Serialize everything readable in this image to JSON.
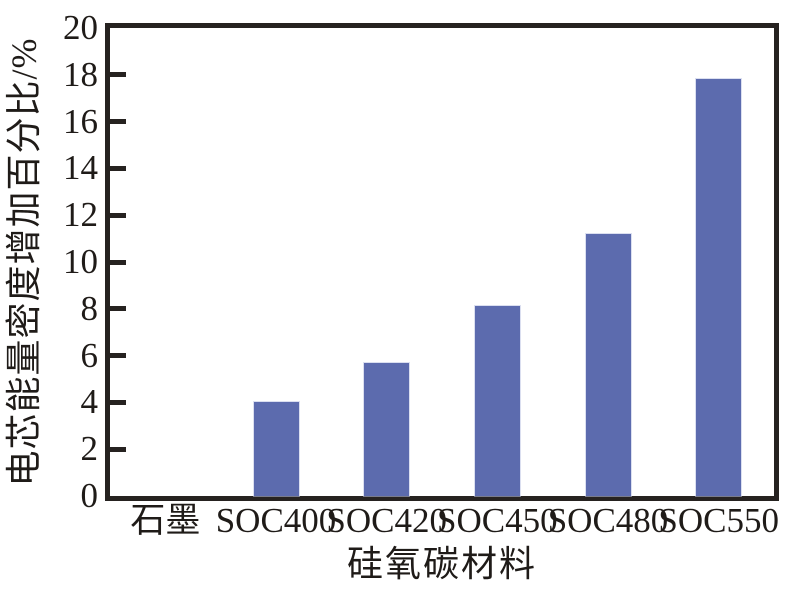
{
  "chart_data": {
    "type": "bar",
    "title": "",
    "categories": [
      "石墨",
      "SOC400",
      "SOC420",
      "SOC450",
      "SOC480",
      "SOC550"
    ],
    "values": [
      0,
      4.0,
      5.7,
      8.1,
      11.2,
      17.8
    ],
    "xlabel": "硅氧碳材料",
    "ylabel": "电芯能量密度增加百分比/%",
    "ylim": [
      0,
      20
    ],
    "yticks": [
      0,
      2,
      4,
      6,
      8,
      10,
      12,
      14,
      16,
      18,
      20
    ],
    "grid": false,
    "legend_position": "none",
    "bar_color": "#5c6bae",
    "axis_color": "#262220",
    "text_color": "#1f1b18",
    "background_color": "#ffffff"
  }
}
